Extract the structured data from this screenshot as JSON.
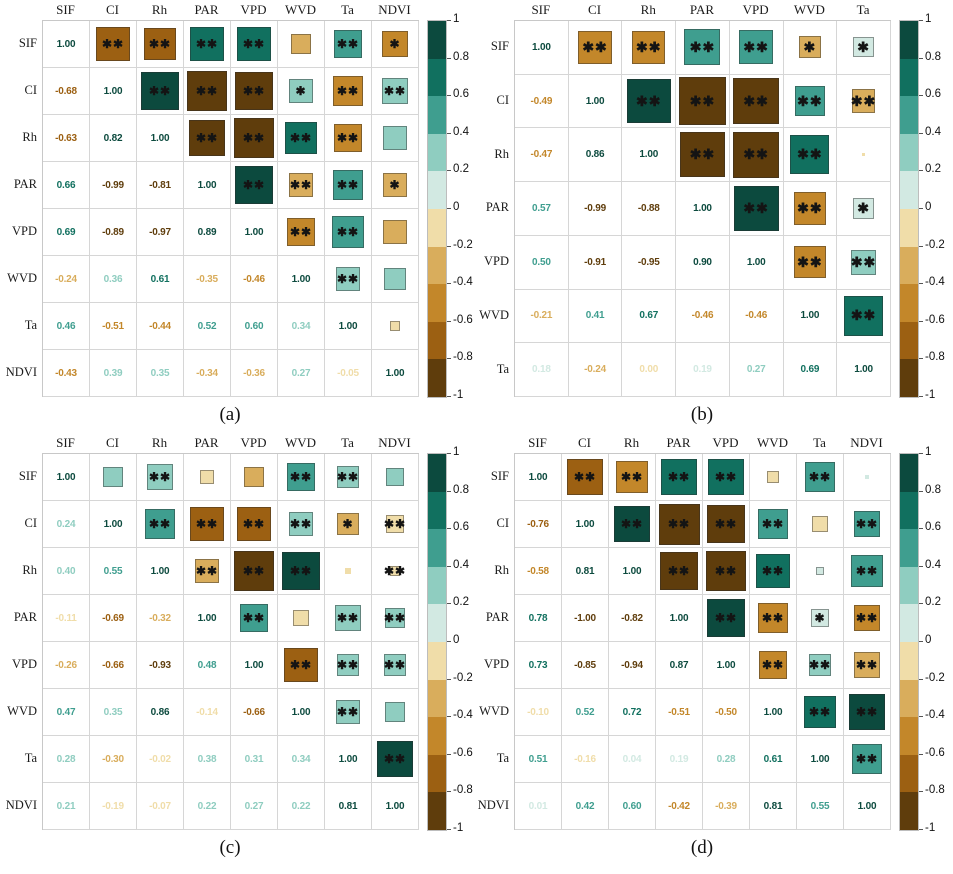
{
  "figure_type": "correlation-matrix-figure",
  "chart_data": [
    {
      "type": "heatmap",
      "title": "(a)",
      "legend_position": "right",
      "variables": [
        "SIF",
        "CI",
        "Rh",
        "PAR",
        "VPD",
        "WVD",
        "Ta",
        "NDVI"
      ],
      "lower_triangle": [
        [
          1.0
        ],
        [
          -0.68,
          1.0
        ],
        [
          -0.63,
          0.82,
          1.0
        ],
        [
          0.66,
          -0.99,
          -0.81,
          1.0
        ],
        [
          0.69,
          -0.89,
          -0.97,
          0.89,
          1.0
        ],
        [
          -0.24,
          0.36,
          0.61,
          -0.35,
          -0.46,
          1.0
        ],
        [
          0.46,
          -0.51,
          -0.44,
          0.52,
          0.6,
          0.34,
          1.0
        ],
        [
          -0.43,
          0.39,
          0.35,
          -0.34,
          -0.36,
          0.27,
          -0.05,
          1.0
        ]
      ],
      "upper_stars": [
        [
          "**",
          "**",
          "**",
          "**",
          "",
          "**",
          "*"
        ],
        [
          "**",
          "**",
          "**",
          "*",
          "**",
          "**"
        ],
        [
          "**",
          "**",
          "**",
          "**",
          ""
        ],
        [
          "**",
          "**",
          "**",
          "*"
        ],
        [
          "**",
          "**",
          ""
        ],
        [
          "**",
          ""
        ],
        [
          ""
        ]
      ]
    },
    {
      "type": "heatmap",
      "title": "(b)",
      "legend_position": "right",
      "variables": [
        "SIF",
        "CI",
        "Rh",
        "PAR",
        "VPD",
        "WVD",
        "Ta"
      ],
      "lower_triangle": [
        [
          1.0
        ],
        [
          -0.49,
          1.0
        ],
        [
          -0.47,
          0.86,
          1.0
        ],
        [
          0.57,
          -0.99,
          -0.88,
          1.0
        ],
        [
          0.5,
          -0.91,
          -0.95,
          0.9,
          1.0
        ],
        [
          -0.21,
          0.41,
          0.67,
          -0.46,
          -0.46,
          1.0
        ],
        [
          0.18,
          -0.24,
          0.0,
          0.19,
          0.27,
          0.69,
          1.0
        ]
      ],
      "upper_stars": [
        [
          "**",
          "**",
          "**",
          "**",
          "*",
          "*"
        ],
        [
          "**",
          "**",
          "**",
          "**",
          "**"
        ],
        [
          "**",
          "**",
          "**",
          ""
        ],
        [
          "**",
          "**",
          "*"
        ],
        [
          "**",
          "**"
        ],
        [
          "**"
        ],
        []
      ]
    },
    {
      "type": "heatmap",
      "title": "(c)",
      "legend_position": "right",
      "variables": [
        "SIF",
        "CI",
        "Rh",
        "PAR",
        "VPD",
        "WVD",
        "Ta",
        "NDVI"
      ],
      "lower_triangle": [
        [
          1.0
        ],
        [
          0.24,
          1.0
        ],
        [
          0.4,
          0.55,
          1.0
        ],
        [
          -0.11,
          -0.69,
          -0.32,
          1.0
        ],
        [
          -0.26,
          -0.66,
          -0.93,
          0.48,
          1.0
        ],
        [
          0.47,
          0.35,
          0.86,
          -0.14,
          -0.66,
          1.0
        ],
        [
          0.28,
          -0.3,
          -0.02,
          0.38,
          0.31,
          0.34,
          1.0
        ],
        [
          0.21,
          -0.19,
          -0.07,
          0.22,
          0.27,
          0.22,
          0.81,
          1.0
        ]
      ],
      "upper_stars": [
        [
          "",
          "**",
          "",
          "",
          "**",
          "**",
          ""
        ],
        [
          "**",
          "**",
          "**",
          "**",
          "*",
          "**"
        ],
        [
          "**",
          "**",
          "**",
          "",
          "**"
        ],
        [
          "**",
          "",
          "**",
          "**"
        ],
        [
          "**",
          "**",
          "**"
        ],
        [
          "**",
          ""
        ],
        [
          "**"
        ]
      ]
    },
    {
      "type": "heatmap",
      "title": "(d)",
      "legend_position": "right",
      "variables": [
        "SIF",
        "CI",
        "Rh",
        "PAR",
        "VPD",
        "WVD",
        "Ta",
        "NDVI"
      ],
      "lower_triangle": [
        [
          1.0
        ],
        [
          -0.76,
          1.0
        ],
        [
          -0.58,
          0.81,
          1.0
        ],
        [
          0.78,
          -1.0,
          -0.82,
          1.0
        ],
        [
          0.73,
          -0.85,
          -0.94,
          0.87,
          1.0
        ],
        [
          -0.1,
          0.52,
          0.72,
          -0.51,
          -0.5,
          1.0
        ],
        [
          0.51,
          -0.16,
          0.04,
          0.19,
          0.28,
          0.61,
          1.0
        ],
        [
          0.01,
          0.42,
          0.6,
          -0.42,
          -0.39,
          0.81,
          0.55,
          1.0
        ]
      ],
      "upper_stars": [
        [
          "**",
          "**",
          "**",
          "**",
          "",
          "**",
          ""
        ],
        [
          "**",
          "**",
          "**",
          "**",
          "",
          "**"
        ],
        [
          "**",
          "**",
          "**",
          "",
          "**"
        ],
        [
          "**",
          "**",
          "*",
          "**"
        ],
        [
          "**",
          "**",
          "**"
        ],
        [
          "**",
          "**"
        ],
        [
          "**"
        ]
      ]
    }
  ],
  "colorbar": {
    "min": -1,
    "max": 1,
    "tick_labels": [
      "1",
      "0.8",
      "0.6",
      "0.4",
      "0.2",
      "0",
      "-0.2",
      "-0.4",
      "-0.6",
      "-0.8",
      "-1"
    ],
    "band_colors": [
      "#0c4a3e",
      "#11705f",
      "#3f9e8f",
      "#8fcdc0",
      "#d2e9e2",
      "#f0dda9",
      "#d9ad5c",
      "#c3872a",
      "#9c6012",
      "#5f3d0c"
    ]
  },
  "significance": {
    "double_star": "**",
    "single_star": "*",
    "star_glyph": "✱"
  }
}
